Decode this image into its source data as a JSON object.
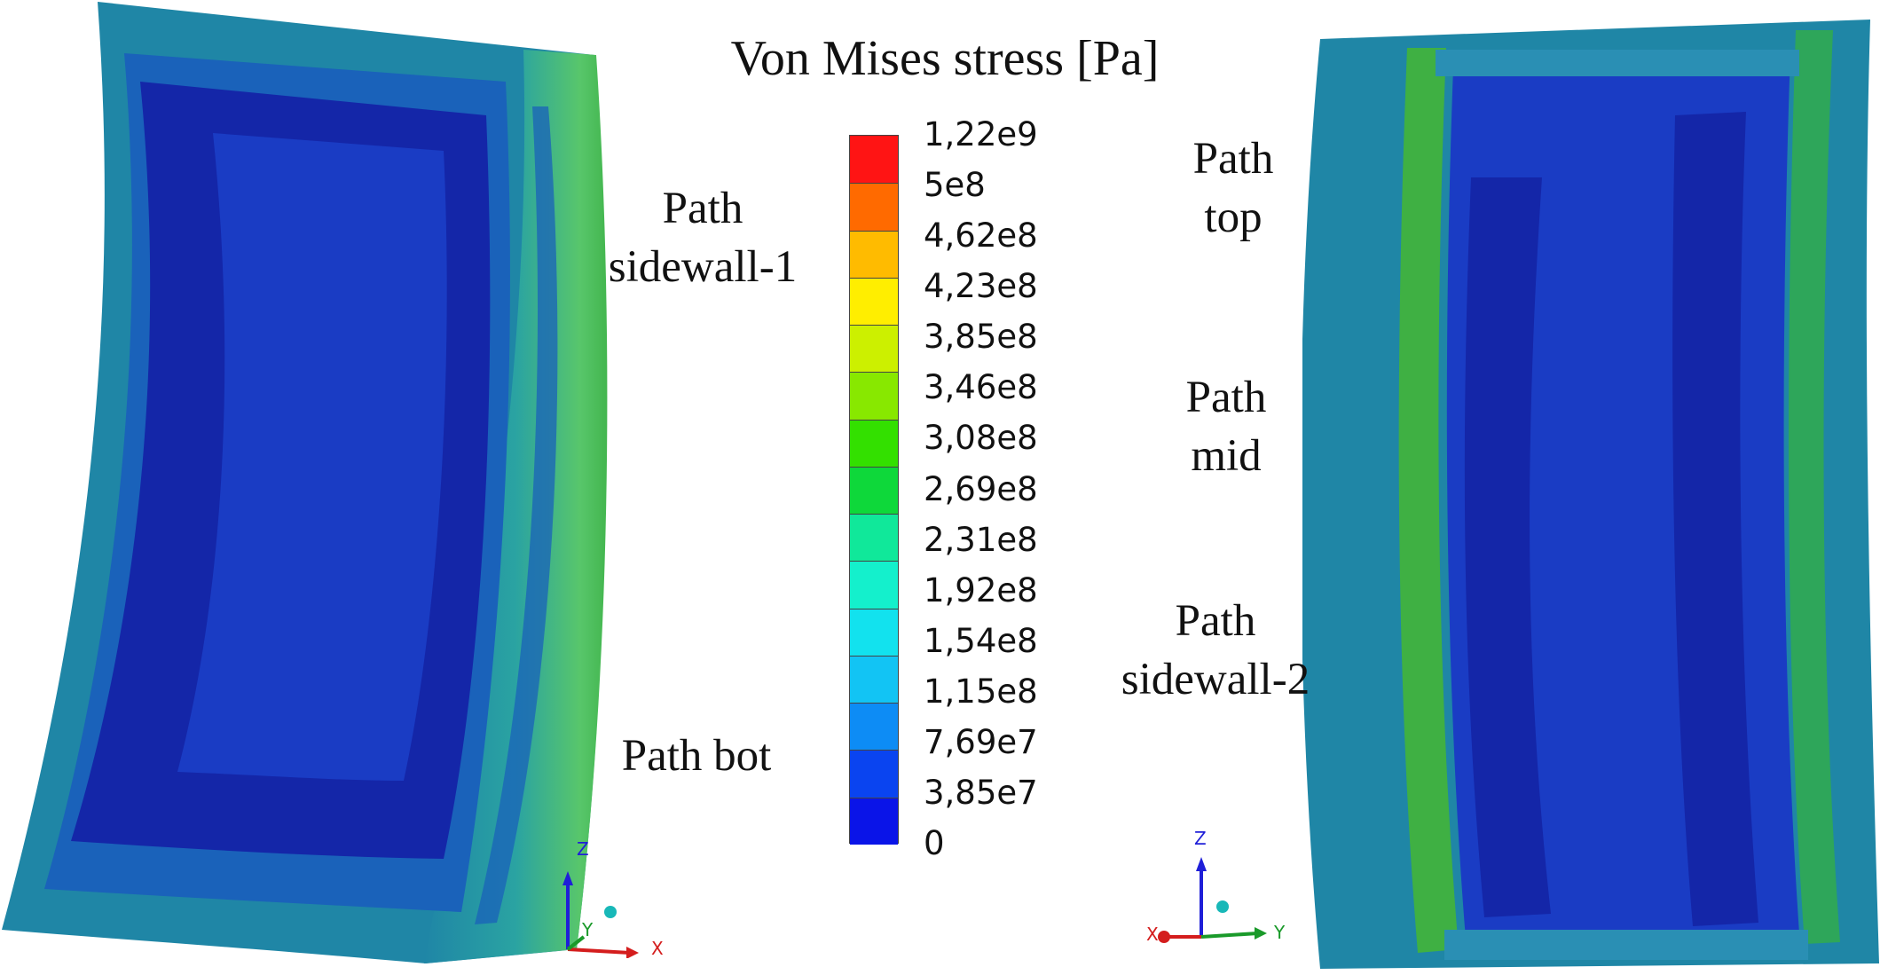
{
  "figure": {
    "title": "Von Mises stress [Pa]",
    "path_labels": {
      "sidewall_1": [
        "Path",
        "sidewall-1"
      ],
      "bot": "Path bot",
      "top": [
        "Path",
        "top"
      ],
      "mid": [
        "Path",
        "mid"
      ],
      "sidewall_2": [
        "Path",
        "sidewall-2"
      ]
    },
    "legend": {
      "labels": [
        "1,22e9",
        "5e8",
        "4,62e8",
        "4,23e8",
        "3,85e8",
        "3,46e8",
        "3,08e8",
        "2,69e8",
        "2,31e8",
        "1,92e8",
        "1,54e8",
        "1,15e8",
        "7,69e7",
        "3,85e7",
        "0"
      ],
      "colors": [
        "#ff1414",
        "#ff6a00",
        "#ffbb00",
        "#ffee00",
        "#ccf000",
        "#88e800",
        "#33e000",
        "#0ed83a",
        "#10e89a",
        "#14f0cc",
        "#12e2ee",
        "#12c4f4",
        "#0d8cf5",
        "#0a44f0",
        "#0a14e8"
      ]
    },
    "triad_left": {
      "z": "Z",
      "y": "Y",
      "x": "X"
    },
    "triad_right": {
      "z": "Z",
      "x": "X",
      "y": "Y"
    },
    "colors": {
      "shell_outer": "#1f86a6",
      "shell_mid": "#1a62ba",
      "core_dark": "#1426a8",
      "core": "#1a3cc4",
      "edge_green": "#3fb043",
      "axis_blue": "#1f1fd8",
      "axis_red": "#d41d1d",
      "axis_green": "#1a9a2a",
      "marker_teal": "#18b8b8"
    }
  }
}
